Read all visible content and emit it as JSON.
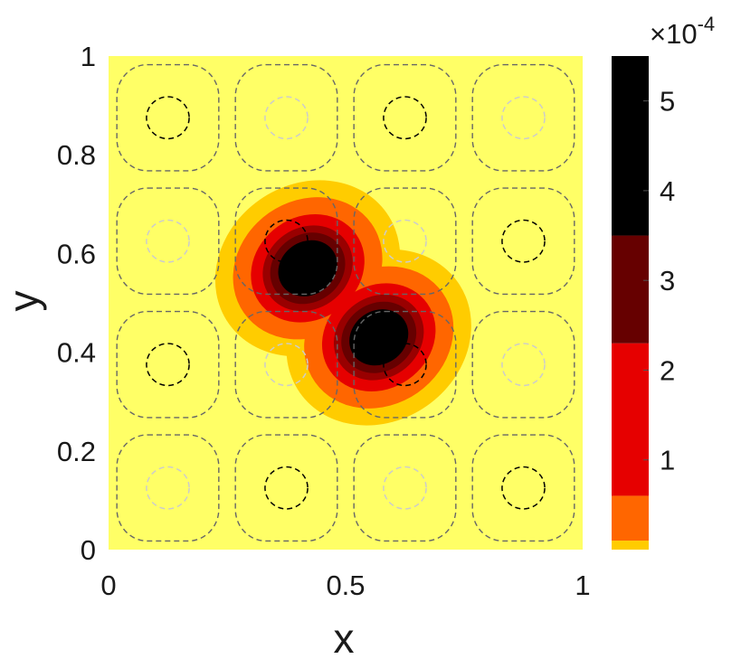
{
  "chart_data": {
    "type": "heatmap",
    "title": "",
    "xlabel": "x",
    "ylabel": "y",
    "xlim": [
      0,
      1
    ],
    "ylim": [
      0,
      1
    ],
    "xticks": [
      "0",
      "0.5",
      "1"
    ],
    "yticks": [
      "0",
      "0.2",
      "0.4",
      "0.6",
      "0.8",
      "1"
    ],
    "grid": false,
    "filled_contours": {
      "description_colors": "yellow background, orange/red/dark red/black filled levels",
      "sources": [
        {
          "x": 0.42,
          "y": 0.57,
          "sx": 0.072,
          "sy": 0.06,
          "angle_deg": -35
        },
        {
          "x": 0.57,
          "y": 0.43,
          "sx": 0.072,
          "sy": 0.06,
          "angle_deg": -35
        }
      ],
      "peak": 0.00054,
      "levels": [
        {
          "value": 1e-05,
          "color": "#ffcc00"
        },
        {
          "value": 4e-05,
          "color": "#ff6600"
        },
        {
          "value": 0.00012,
          "color": "#e60000"
        },
        {
          "value": 0.00021,
          "color": "#990000"
        },
        {
          "value": 0.00028,
          "color": "#660000"
        },
        {
          "value": 0.00036,
          "color": "#000000"
        }
      ],
      "background_color": "#ffff66"
    },
    "line_contours": {
      "style": "dashed",
      "cell_centers_x": [
        0.125,
        0.375,
        0.625,
        0.875
      ],
      "cell_centers_y": [
        0.125,
        0.375,
        0.625,
        0.875
      ],
      "outer_color": "#666666",
      "inner_dark_color": "#000000",
      "inner_light_color": "#cccccc"
    },
    "colorbar": {
      "range": [
        0,
        0.00055
      ],
      "ticks": [
        "1",
        "2",
        "3",
        "4",
        "5"
      ],
      "tick_values": [
        1,
        2,
        3,
        4,
        5
      ],
      "multiplier_base": "×10",
      "multiplier_exponent": "-4",
      "bands": [
        {
          "from": 0.0,
          "to": 0.1,
          "color": "#ffcc00"
        },
        {
          "from": 0.1,
          "to": 0.6,
          "color": "#ff6600"
        },
        {
          "from": 0.6,
          "to": 2.3,
          "color": "#e60000"
        },
        {
          "from": 2.3,
          "to": 3.5,
          "color": "#660000"
        },
        {
          "from": 3.5,
          "to": 5.5,
          "color": "#000000"
        }
      ]
    }
  }
}
